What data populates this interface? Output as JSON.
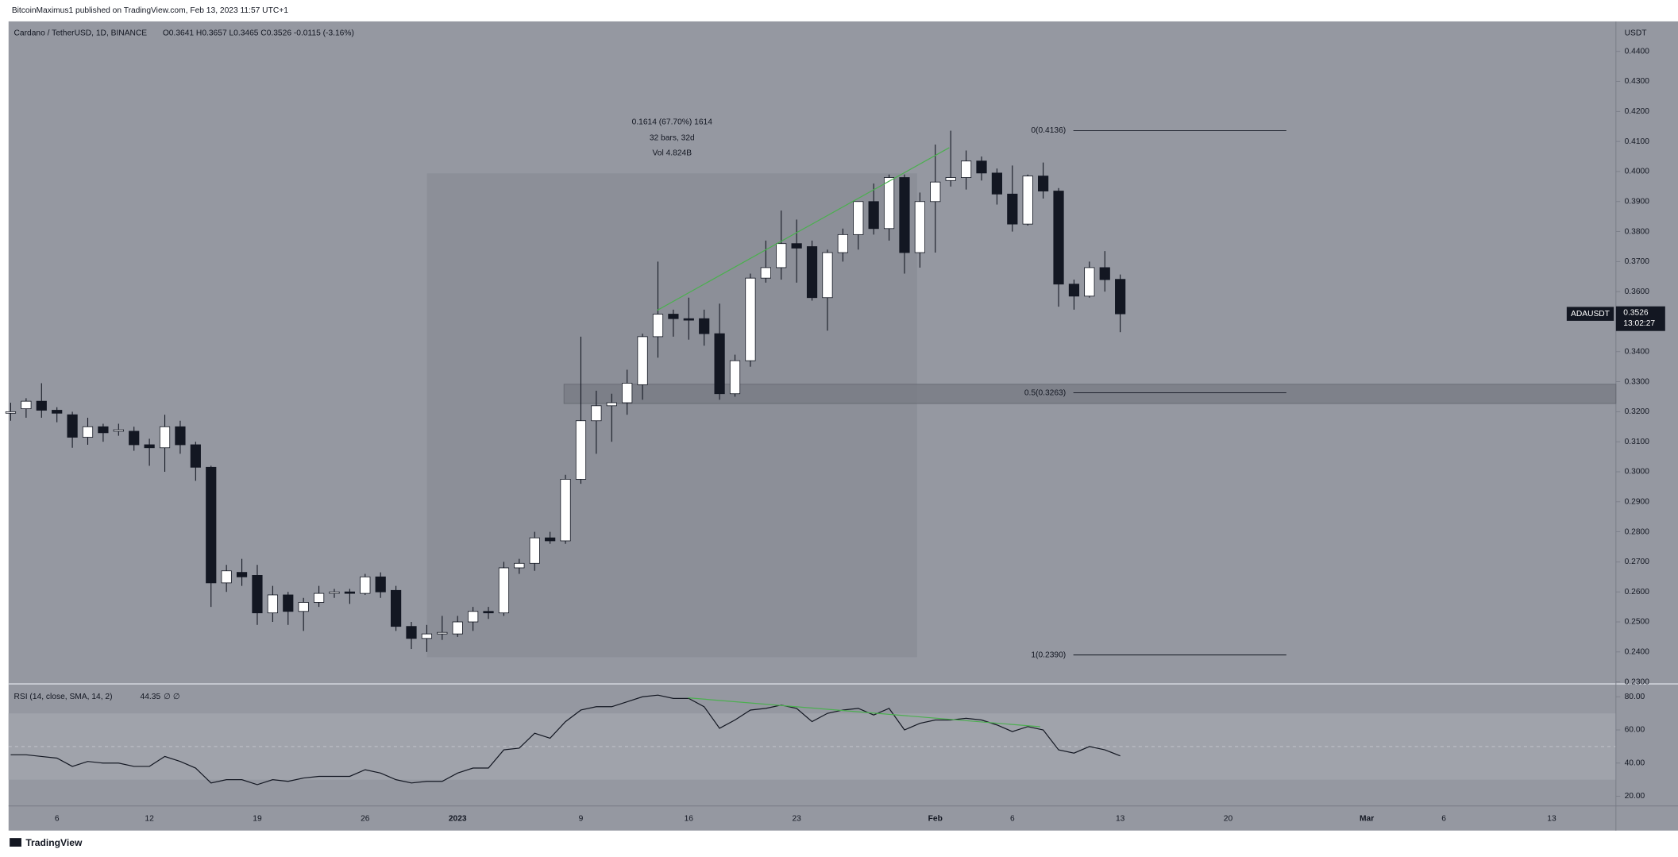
{
  "header": {
    "publisher": "BitcoinMaximus1 published on TradingView.com, Feb 13, 2023 11:57 UTC+1"
  },
  "chart_data": [
    {
      "type": "candlestick",
      "title": "Cardano / TetherUSD, 1D, BINANCE",
      "ohlc_legend": "O0.3641 H0.3657 L0.3465 C0.3526 -0.0115 (-3.16%)",
      "y_axis_label": "USDT",
      "categories": [
        null,
        null,
        null,
        "6",
        null,
        null,
        null,
        null,
        null,
        "12",
        null,
        null,
        null,
        null,
        null,
        null,
        "19",
        null,
        null,
        null,
        null,
        null,
        null,
        "26",
        null,
        null,
        null,
        null,
        null,
        "2023",
        null,
        null,
        null,
        null,
        null,
        null,
        null,
        "9",
        null,
        null,
        null,
        null,
        null,
        null,
        "16",
        null,
        null,
        null,
        null,
        null,
        null,
        "23",
        null,
        null,
        null,
        null,
        null,
        null,
        null,
        null,
        "Feb",
        null,
        null,
        null,
        null,
        "6",
        null,
        null,
        null,
        null,
        null,
        null,
        "13",
        null,
        null,
        null,
        null,
        null,
        null,
        "20",
        null,
        null,
        null,
        null,
        null,
        null,
        null,
        null,
        "Mar",
        null,
        null,
        null,
        null,
        "6",
        null,
        null,
        null,
        null,
        null,
        null,
        "13",
        null,
        null,
        null,
        null
      ],
      "open": [
        0.3195,
        0.321,
        0.3235,
        0.3205,
        0.319,
        0.3115,
        0.315,
        0.3135,
        0.3135,
        0.309,
        0.308,
        0.315,
        0.309,
        0.3015,
        0.263,
        0.2665,
        0.2655,
        0.253,
        0.259,
        0.2535,
        0.2565,
        0.2595,
        0.26,
        0.2595,
        0.265,
        0.2605,
        0.2485,
        0.2445,
        0.246,
        0.246,
        0.25,
        0.2535,
        0.253,
        0.268,
        0.2695,
        0.278,
        0.277,
        0.2975,
        0.317,
        0.322,
        0.323,
        0.329,
        0.345,
        0.3525,
        0.351,
        0.351,
        0.346,
        0.326,
        0.337,
        0.3645,
        0.368,
        0.376,
        0.375,
        0.358,
        0.373,
        0.379,
        0.39,
        0.381,
        0.398,
        0.373,
        0.39,
        0.397,
        0.398,
        0.4035,
        0.3995,
        0.3925,
        0.3825,
        0.3985,
        0.3935,
        0.3625,
        0.3585,
        0.368,
        0.3641,
        null,
        null,
        null,
        null,
        null,
        null,
        null,
        null,
        null,
        null,
        null,
        null,
        null,
        null,
        null,
        null,
        null,
        null,
        null,
        null,
        null,
        null,
        null,
        null,
        null,
        null,
        null,
        null,
        null,
        null,
        null,
        null
      ],
      "high": [
        0.323,
        0.3245,
        0.3295,
        0.3215,
        0.32,
        0.318,
        0.316,
        0.316,
        0.315,
        0.311,
        0.319,
        0.317,
        0.31,
        0.302,
        0.269,
        0.271,
        0.269,
        0.262,
        0.26,
        0.258,
        0.262,
        0.261,
        0.261,
        0.266,
        0.2665,
        0.262,
        0.25,
        0.249,
        0.252,
        0.252,
        0.255,
        0.255,
        0.27,
        0.271,
        0.28,
        0.28,
        0.299,
        0.345,
        0.327,
        0.326,
        0.334,
        0.346,
        0.37,
        0.354,
        0.358,
        0.354,
        0.356,
        0.339,
        0.366,
        0.377,
        0.387,
        0.384,
        0.377,
        0.374,
        0.381,
        0.39,
        0.396,
        0.399,
        0.399,
        0.393,
        0.409,
        0.4136,
        0.407,
        0.405,
        0.401,
        0.402,
        0.399,
        0.403,
        0.3945,
        0.364,
        0.37,
        0.3735,
        0.3657,
        null,
        null,
        null,
        null,
        null,
        null,
        null,
        null,
        null,
        null,
        null,
        null,
        null,
        null,
        null,
        null,
        null,
        null,
        null,
        null,
        null,
        null,
        null,
        null,
        null,
        null,
        null,
        null,
        null,
        null,
        null,
        null
      ],
      "low": [
        0.317,
        0.318,
        0.318,
        0.3165,
        0.308,
        0.309,
        0.31,
        0.312,
        0.307,
        0.302,
        0.3,
        0.306,
        0.297,
        0.255,
        0.26,
        0.262,
        0.249,
        0.25,
        0.249,
        0.247,
        0.255,
        0.258,
        0.256,
        0.259,
        0.258,
        0.247,
        0.241,
        0.24,
        0.244,
        0.245,
        0.247,
        0.251,
        0.252,
        0.266,
        0.267,
        0.276,
        0.276,
        0.296,
        0.306,
        0.31,
        0.319,
        0.324,
        0.338,
        0.345,
        0.344,
        0.342,
        0.324,
        0.325,
        0.335,
        0.363,
        0.364,
        0.363,
        0.357,
        0.347,
        0.37,
        0.374,
        0.379,
        0.377,
        0.366,
        0.368,
        0.373,
        0.395,
        0.394,
        0.397,
        0.389,
        0.38,
        0.382,
        0.391,
        0.355,
        0.354,
        0.358,
        0.36,
        0.3465,
        null,
        null,
        null,
        null,
        null,
        null,
        null,
        null,
        null,
        null,
        null,
        null,
        null,
        null,
        null,
        null,
        null,
        null,
        null,
        null,
        null,
        null,
        null,
        null,
        null,
        null,
        null,
        null,
        null,
        null,
        null,
        null
      ],
      "close": [
        0.32,
        0.3235,
        0.3205,
        0.3195,
        0.3115,
        0.315,
        0.313,
        0.314,
        0.309,
        0.308,
        0.315,
        0.309,
        0.3015,
        0.263,
        0.267,
        0.265,
        0.253,
        0.259,
        0.2535,
        0.2565,
        0.2595,
        0.26,
        0.2595,
        0.265,
        0.26,
        0.2485,
        0.2445,
        0.246,
        0.2465,
        0.25,
        0.2535,
        0.253,
        0.268,
        0.2695,
        0.278,
        0.277,
        0.2975,
        0.317,
        0.322,
        0.323,
        0.3295,
        0.345,
        0.3525,
        0.351,
        0.3505,
        0.346,
        0.326,
        0.337,
        0.3645,
        0.368,
        0.376,
        0.3745,
        0.358,
        0.373,
        0.379,
        0.39,
        0.381,
        0.398,
        0.373,
        0.39,
        0.3965,
        0.398,
        0.4035,
        0.3995,
        0.3925,
        0.3825,
        0.3985,
        0.3935,
        0.3625,
        0.3585,
        0.368,
        0.364,
        0.3526,
        null,
        null,
        null,
        null,
        null,
        null,
        null,
        null,
        null,
        null,
        null,
        null,
        null,
        null,
        null,
        null,
        null,
        null,
        null,
        null,
        null,
        null,
        null,
        null,
        null,
        null,
        null,
        null,
        null,
        null,
        null,
        null
      ],
      "up_color": "#ffffff",
      "down_color": "#131722",
      "ylim": [
        0.2297,
        0.45
      ],
      "yticks": [
        {
          "value": 0.23,
          "label": "0.2300"
        },
        {
          "value": 0.24,
          "label": "0.2400"
        },
        {
          "value": 0.25,
          "label": "0.2500"
        },
        {
          "value": 0.26,
          "label": "0.2600"
        },
        {
          "value": 0.27,
          "label": "0.2700"
        },
        {
          "value": 0.28,
          "label": "0.2800"
        },
        {
          "value": 0.29,
          "label": "0.2900"
        },
        {
          "value": 0.3,
          "label": "0.3000"
        },
        {
          "value": 0.31,
          "label": "0.3100"
        },
        {
          "value": 0.32,
          "label": "0.3200"
        },
        {
          "value": 0.33,
          "label": "0.3300"
        },
        {
          "value": 0.34,
          "label": "0.3400"
        },
        {
          "value": 0.35,
          "label": "0.3500"
        },
        {
          "value": 0.36,
          "label": "0.3600"
        },
        {
          "value": 0.37,
          "label": "0.3700"
        },
        {
          "value": 0.38,
          "label": "0.3800"
        },
        {
          "value": 0.39,
          "label": "0.3900"
        },
        {
          "value": 0.4,
          "label": "0.4000"
        },
        {
          "value": 0.41,
          "label": "0.4100"
        },
        {
          "value": 0.42,
          "label": "0.4200"
        },
        {
          "value": 0.43,
          "label": "0.4300"
        },
        {
          "value": 0.44,
          "label": "0.4400"
        }
      ],
      "measure": [
        "0.1614 (67.70%) 1614",
        "32 bars, 32d",
        "Vol 4.824B"
      ],
      "fib_levels": [
        {
          "value": 0.4136,
          "label": "0(0.4136)"
        },
        {
          "value": 0.3263,
          "label": "0.5(0.3263)"
        },
        {
          "value": 0.239,
          "label": "1(0.2390)"
        }
      ],
      "last_price": {
        "symbol": "ADAUSDT",
        "countdown": "13:02:27"
      }
    },
    {
      "type": "line",
      "title": "RSI (14, close, SMA, 14, 2)",
      "extra": "∅ ∅",
      "color": "#131722",
      "values": [
        45,
        45,
        44,
        43,
        38,
        41,
        40,
        40,
        38,
        38,
        44,
        41,
        37,
        28,
        30,
        30,
        27,
        30,
        29,
        31,
        32,
        32,
        32,
        36,
        34,
        30,
        28,
        29,
        29,
        34,
        37,
        37,
        48,
        49,
        58,
        55,
        65,
        72,
        74,
        74,
        77,
        80,
        81,
        79,
        79,
        74,
        61,
        66,
        72,
        73,
        75,
        73,
        65,
        70,
        72,
        73,
        69,
        73,
        60,
        64,
        66,
        66,
        67,
        66,
        63,
        59,
        62,
        60,
        48,
        46,
        50,
        48,
        44.35,
        null,
        null,
        null,
        null,
        null,
        null,
        null,
        null,
        null,
        null,
        null,
        null,
        null,
        null,
        null,
        null,
        null,
        null,
        null,
        null,
        null,
        null,
        null,
        null,
        null,
        null,
        null,
        null,
        null,
        null,
        null,
        null
      ],
      "ylim": [
        14.8,
        87.1
      ],
      "yticks": [
        {
          "value": 20,
          "label": "20.00"
        },
        {
          "value": 40,
          "label": "40.00"
        },
        {
          "value": 60,
          "label": "60.00"
        },
        {
          "value": 80,
          "label": "80.00"
        }
      ]
    }
  ],
  "footer": {
    "logo": "TradingView"
  }
}
